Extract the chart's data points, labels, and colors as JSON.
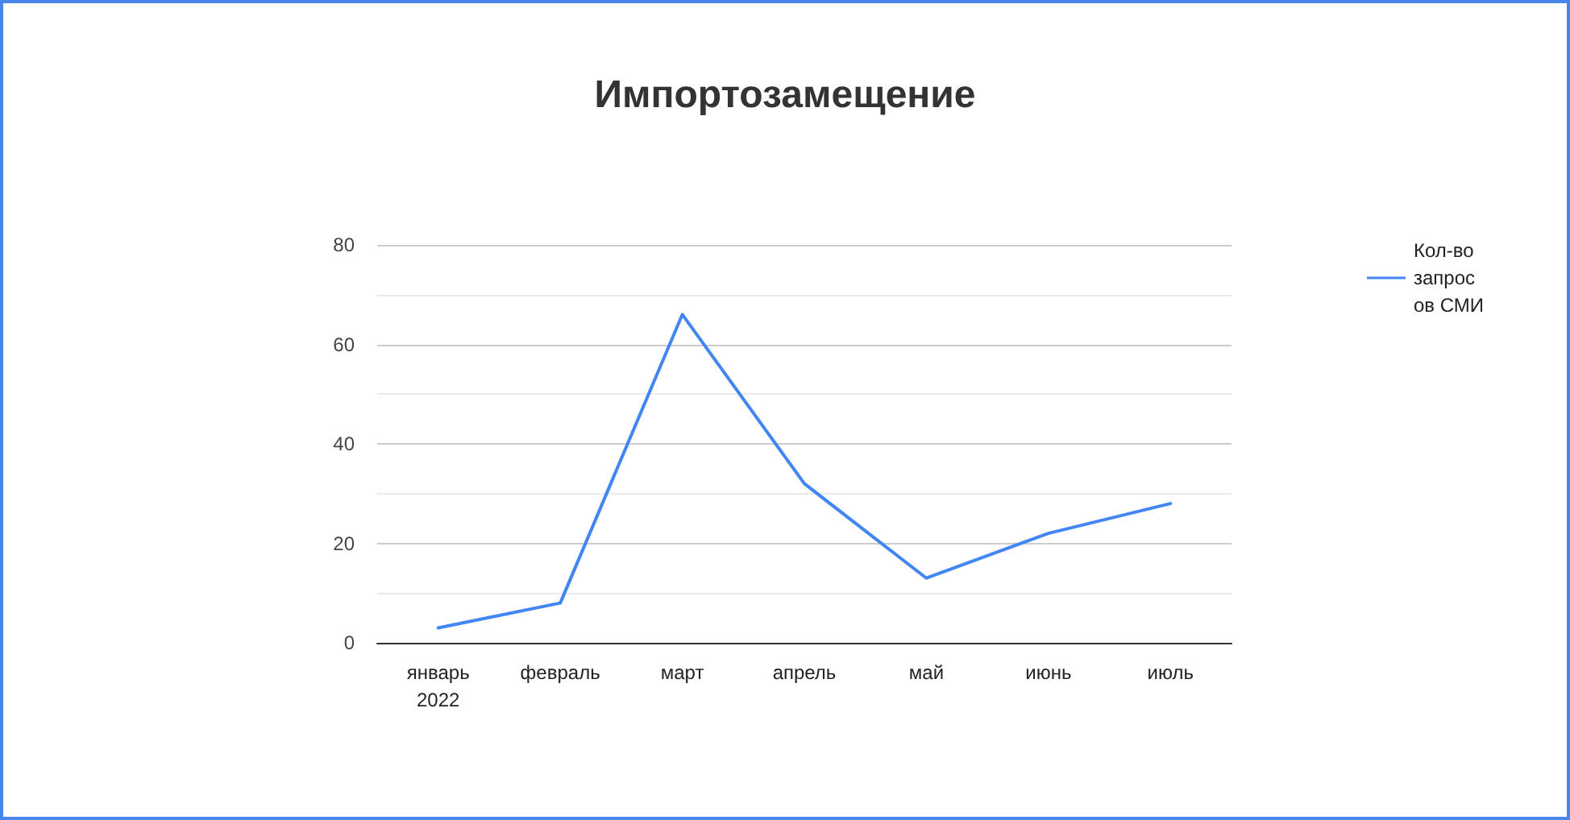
{
  "chart_data": {
    "type": "line",
    "title": "Импортозамещение",
    "categories": [
      "январь 2022",
      "февраль",
      "март",
      "апрель",
      "май",
      "июнь",
      "июль"
    ],
    "series": [
      {
        "name": "Кол-во запросов СМИ",
        "color": "#4285f4",
        "values": [
          3,
          8,
          66,
          32,
          13,
          22,
          28
        ]
      }
    ],
    "ylim": [
      0,
      80
    ],
    "yticks": [
      0,
      20,
      40,
      60,
      80
    ],
    "grid": "y",
    "legend": "right",
    "marker": "none",
    "line_style": "solid"
  }
}
